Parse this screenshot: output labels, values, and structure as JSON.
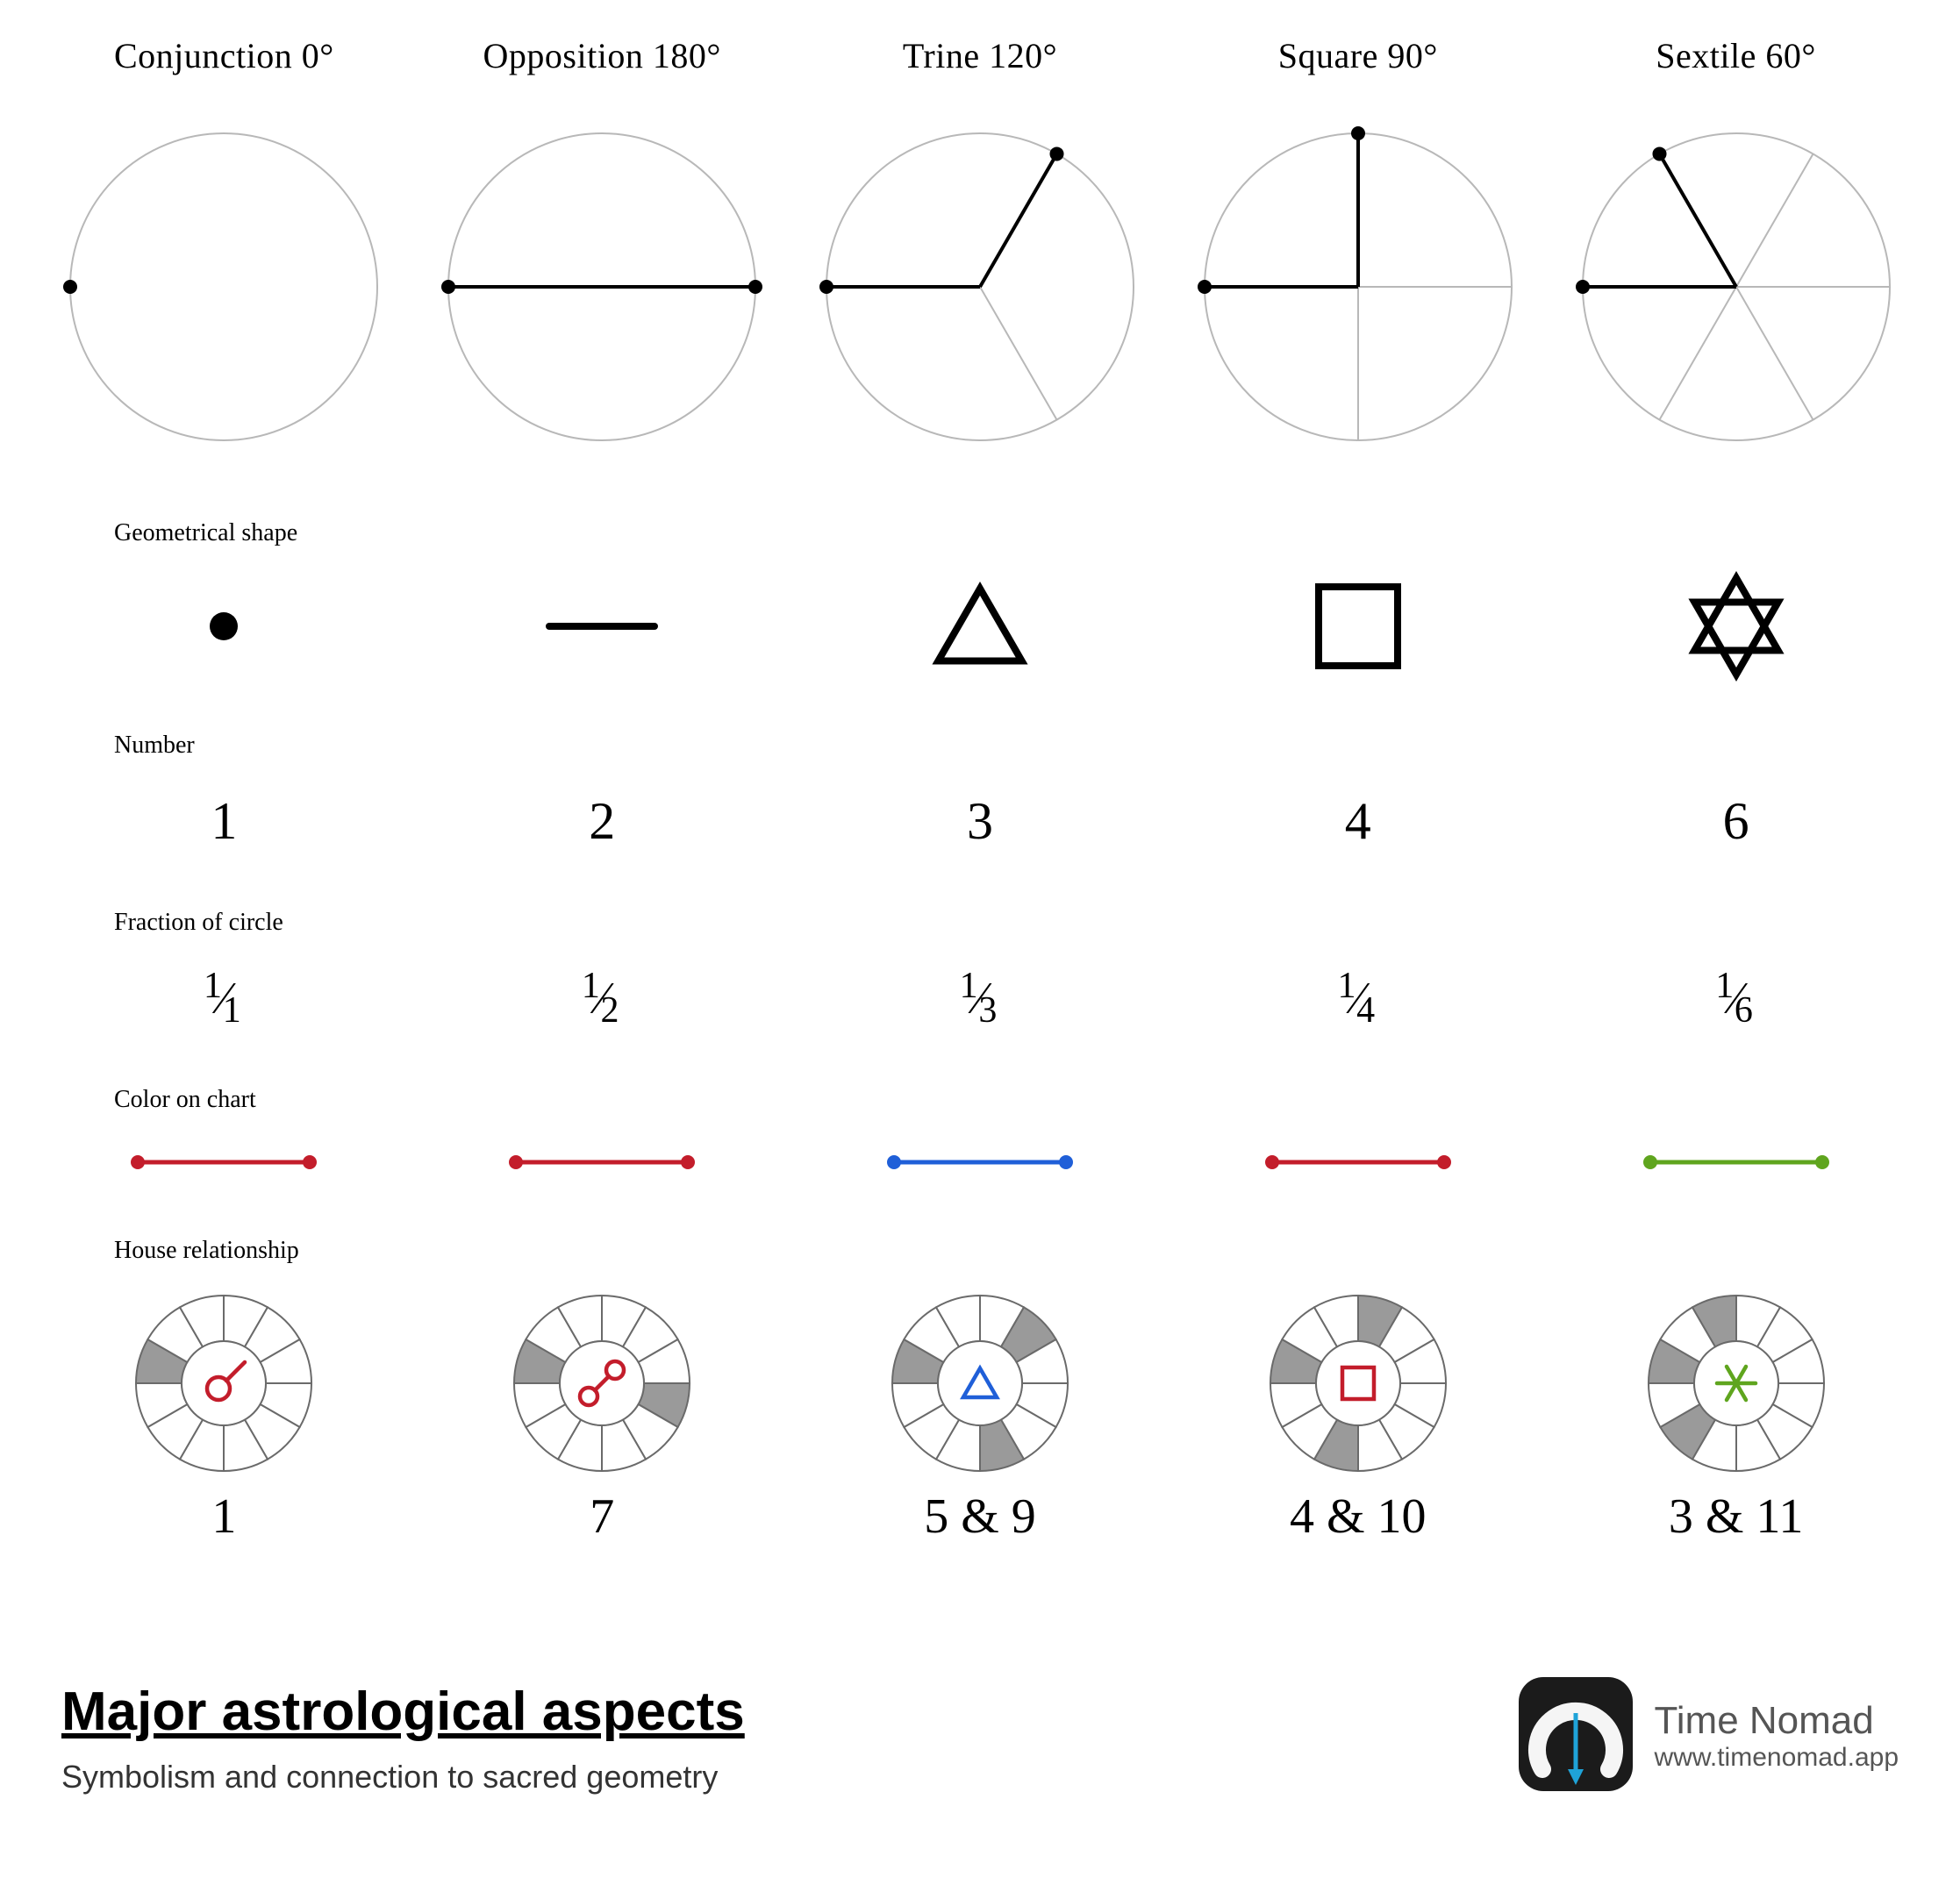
{
  "row_labels": {
    "shape": "Geometrical shape",
    "number": "Number",
    "fraction": "Fraction of circle",
    "color": "Color on chart",
    "house": "House relationship"
  },
  "footer": {
    "title": "Major astrological aspects",
    "subtitle": "Symbolism and connection to sacred geometry",
    "brand": "Time Nomad",
    "url": "www.timenomad.app"
  },
  "style": {
    "circle_stroke": "#b8b8b8",
    "circle_stroke_width": 2,
    "dark_stroke": "#000000",
    "dark_stroke_width": 4,
    "point_radius": 8,
    "shape_stroke_width": 8,
    "house_wheel": {
      "outer_r": 100,
      "inner_r": 48,
      "stroke": "#6a6a6a",
      "stroke_width": 2,
      "fill_light": "#ffffff",
      "fill_dark": "#9a9a9a"
    },
    "logo": {
      "bg": "#1b1b1b",
      "arc": "#f5f5f5",
      "arrow": "#1fa3d8"
    }
  },
  "aspects": [
    {
      "title": "Conjunction 0°",
      "angles_solid_deg": [
        180
      ],
      "angles_light_deg": [],
      "points_only": true,
      "shape": "dot",
      "number": "1",
      "fraction_num": "1",
      "fraction_den": "1",
      "chart_color": "#c31d2b",
      "house_highlight": [
        1
      ],
      "house_label": "1",
      "glyph": "conjunction",
      "glyph_color": "#c31d2b"
    },
    {
      "title": "Opposition 180°",
      "angles_solid_deg": [
        180,
        0
      ],
      "angles_light_deg": [],
      "shape": "line",
      "number": "2",
      "fraction_num": "1",
      "fraction_den": "2",
      "chart_color": "#c31d2b",
      "house_highlight": [
        1,
        7
      ],
      "house_label": "7",
      "glyph": "opposition",
      "glyph_color": "#c31d2b"
    },
    {
      "title": "Trine 120°",
      "angles_solid_deg": [
        180,
        60
      ],
      "angles_light_deg": [
        300
      ],
      "shape": "triangle",
      "number": "3",
      "fraction_num": "1",
      "fraction_den": "3",
      "chart_color": "#1f5fd8",
      "house_highlight": [
        1,
        5,
        9
      ],
      "house_label": "5 & 9",
      "glyph": "triangle",
      "glyph_color": "#1f5fd8"
    },
    {
      "title": "Square 90°",
      "angles_solid_deg": [
        180,
        90
      ],
      "angles_light_deg": [
        0,
        270
      ],
      "shape": "square",
      "number": "4",
      "fraction_num": "1",
      "fraction_den": "4",
      "chart_color": "#c31d2b",
      "house_highlight": [
        1,
        4,
        10
      ],
      "house_label": "4 & 10",
      "glyph": "square",
      "glyph_color": "#c31d2b"
    },
    {
      "title": "Sextile 60°",
      "angles_solid_deg": [
        180,
        120
      ],
      "angles_light_deg": [
        60,
        0,
        300,
        240
      ],
      "shape": "hexagram",
      "number": "6",
      "fraction_num": "1",
      "fraction_den": "6",
      "chart_color": "#5fa51e",
      "house_highlight": [
        1,
        3,
        11
      ],
      "house_label": "3 & 11",
      "glyph": "sextile",
      "glyph_color": "#5fa51e"
    }
  ]
}
